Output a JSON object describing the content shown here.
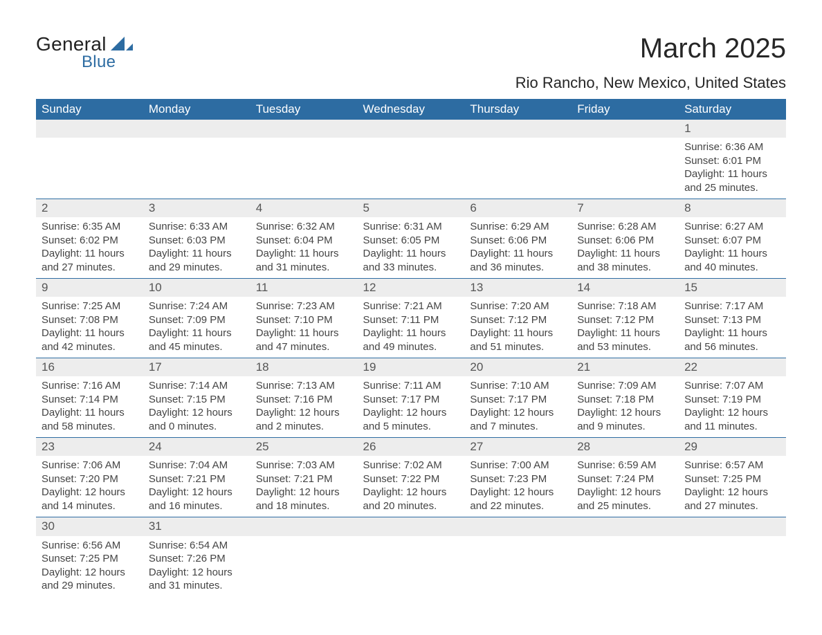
{
  "brand": {
    "text1": "General",
    "text2": "Blue",
    "triangle_color": "#2d6ca2"
  },
  "title": "March 2025",
  "location": "Rio Rancho, New Mexico, United States",
  "colors": {
    "header_bg": "#2d6ca2",
    "header_text": "#ffffff",
    "daynum_bg": "#ededed",
    "row_border": "#2d6ca2",
    "body_text": "#444444"
  },
  "weekdays": [
    "Sunday",
    "Monday",
    "Tuesday",
    "Wednesday",
    "Thursday",
    "Friday",
    "Saturday"
  ],
  "weeks": [
    [
      null,
      null,
      null,
      null,
      null,
      null,
      {
        "n": "1",
        "sr": "Sunrise: 6:36 AM",
        "ss": "Sunset: 6:01 PM",
        "d1": "Daylight: 11 hours",
        "d2": "and 25 minutes."
      }
    ],
    [
      {
        "n": "2",
        "sr": "Sunrise: 6:35 AM",
        "ss": "Sunset: 6:02 PM",
        "d1": "Daylight: 11 hours",
        "d2": "and 27 minutes."
      },
      {
        "n": "3",
        "sr": "Sunrise: 6:33 AM",
        "ss": "Sunset: 6:03 PM",
        "d1": "Daylight: 11 hours",
        "d2": "and 29 minutes."
      },
      {
        "n": "4",
        "sr": "Sunrise: 6:32 AM",
        "ss": "Sunset: 6:04 PM",
        "d1": "Daylight: 11 hours",
        "d2": "and 31 minutes."
      },
      {
        "n": "5",
        "sr": "Sunrise: 6:31 AM",
        "ss": "Sunset: 6:05 PM",
        "d1": "Daylight: 11 hours",
        "d2": "and 33 minutes."
      },
      {
        "n": "6",
        "sr": "Sunrise: 6:29 AM",
        "ss": "Sunset: 6:06 PM",
        "d1": "Daylight: 11 hours",
        "d2": "and 36 minutes."
      },
      {
        "n": "7",
        "sr": "Sunrise: 6:28 AM",
        "ss": "Sunset: 6:06 PM",
        "d1": "Daylight: 11 hours",
        "d2": "and 38 minutes."
      },
      {
        "n": "8",
        "sr": "Sunrise: 6:27 AM",
        "ss": "Sunset: 6:07 PM",
        "d1": "Daylight: 11 hours",
        "d2": "and 40 minutes."
      }
    ],
    [
      {
        "n": "9",
        "sr": "Sunrise: 7:25 AM",
        "ss": "Sunset: 7:08 PM",
        "d1": "Daylight: 11 hours",
        "d2": "and 42 minutes."
      },
      {
        "n": "10",
        "sr": "Sunrise: 7:24 AM",
        "ss": "Sunset: 7:09 PM",
        "d1": "Daylight: 11 hours",
        "d2": "and 45 minutes."
      },
      {
        "n": "11",
        "sr": "Sunrise: 7:23 AM",
        "ss": "Sunset: 7:10 PM",
        "d1": "Daylight: 11 hours",
        "d2": "and 47 minutes."
      },
      {
        "n": "12",
        "sr": "Sunrise: 7:21 AM",
        "ss": "Sunset: 7:11 PM",
        "d1": "Daylight: 11 hours",
        "d2": "and 49 minutes."
      },
      {
        "n": "13",
        "sr": "Sunrise: 7:20 AM",
        "ss": "Sunset: 7:12 PM",
        "d1": "Daylight: 11 hours",
        "d2": "and 51 minutes."
      },
      {
        "n": "14",
        "sr": "Sunrise: 7:18 AM",
        "ss": "Sunset: 7:12 PM",
        "d1": "Daylight: 11 hours",
        "d2": "and 53 minutes."
      },
      {
        "n": "15",
        "sr": "Sunrise: 7:17 AM",
        "ss": "Sunset: 7:13 PM",
        "d1": "Daylight: 11 hours",
        "d2": "and 56 minutes."
      }
    ],
    [
      {
        "n": "16",
        "sr": "Sunrise: 7:16 AM",
        "ss": "Sunset: 7:14 PM",
        "d1": "Daylight: 11 hours",
        "d2": "and 58 minutes."
      },
      {
        "n": "17",
        "sr": "Sunrise: 7:14 AM",
        "ss": "Sunset: 7:15 PM",
        "d1": "Daylight: 12 hours",
        "d2": "and 0 minutes."
      },
      {
        "n": "18",
        "sr": "Sunrise: 7:13 AM",
        "ss": "Sunset: 7:16 PM",
        "d1": "Daylight: 12 hours",
        "d2": "and 2 minutes."
      },
      {
        "n": "19",
        "sr": "Sunrise: 7:11 AM",
        "ss": "Sunset: 7:17 PM",
        "d1": "Daylight: 12 hours",
        "d2": "and 5 minutes."
      },
      {
        "n": "20",
        "sr": "Sunrise: 7:10 AM",
        "ss": "Sunset: 7:17 PM",
        "d1": "Daylight: 12 hours",
        "d2": "and 7 minutes."
      },
      {
        "n": "21",
        "sr": "Sunrise: 7:09 AM",
        "ss": "Sunset: 7:18 PM",
        "d1": "Daylight: 12 hours",
        "d2": "and 9 minutes."
      },
      {
        "n": "22",
        "sr": "Sunrise: 7:07 AM",
        "ss": "Sunset: 7:19 PM",
        "d1": "Daylight: 12 hours",
        "d2": "and 11 minutes."
      }
    ],
    [
      {
        "n": "23",
        "sr": "Sunrise: 7:06 AM",
        "ss": "Sunset: 7:20 PM",
        "d1": "Daylight: 12 hours",
        "d2": "and 14 minutes."
      },
      {
        "n": "24",
        "sr": "Sunrise: 7:04 AM",
        "ss": "Sunset: 7:21 PM",
        "d1": "Daylight: 12 hours",
        "d2": "and 16 minutes."
      },
      {
        "n": "25",
        "sr": "Sunrise: 7:03 AM",
        "ss": "Sunset: 7:21 PM",
        "d1": "Daylight: 12 hours",
        "d2": "and 18 minutes."
      },
      {
        "n": "26",
        "sr": "Sunrise: 7:02 AM",
        "ss": "Sunset: 7:22 PM",
        "d1": "Daylight: 12 hours",
        "d2": "and 20 minutes."
      },
      {
        "n": "27",
        "sr": "Sunrise: 7:00 AM",
        "ss": "Sunset: 7:23 PM",
        "d1": "Daylight: 12 hours",
        "d2": "and 22 minutes."
      },
      {
        "n": "28",
        "sr": "Sunrise: 6:59 AM",
        "ss": "Sunset: 7:24 PM",
        "d1": "Daylight: 12 hours",
        "d2": "and 25 minutes."
      },
      {
        "n": "29",
        "sr": "Sunrise: 6:57 AM",
        "ss": "Sunset: 7:25 PM",
        "d1": "Daylight: 12 hours",
        "d2": "and 27 minutes."
      }
    ],
    [
      {
        "n": "30",
        "sr": "Sunrise: 6:56 AM",
        "ss": "Sunset: 7:25 PM",
        "d1": "Daylight: 12 hours",
        "d2": "and 29 minutes."
      },
      {
        "n": "31",
        "sr": "Sunrise: 6:54 AM",
        "ss": "Sunset: 7:26 PM",
        "d1": "Daylight: 12 hours",
        "d2": "and 31 minutes."
      },
      null,
      null,
      null,
      null,
      null
    ]
  ]
}
